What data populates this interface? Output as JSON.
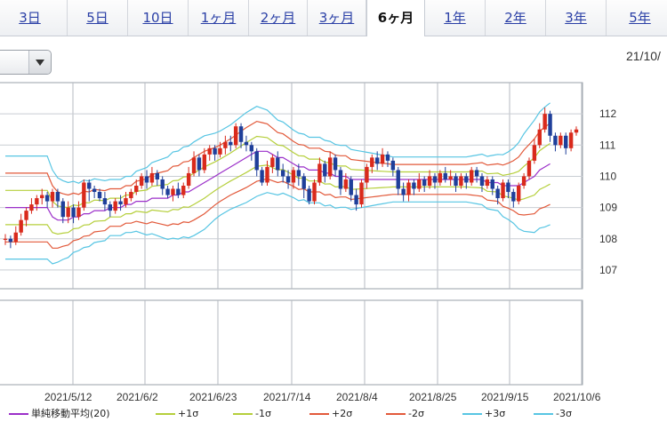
{
  "tabs": [
    {
      "label": "3日",
      "active": false
    },
    {
      "label": "5日",
      "active": false
    },
    {
      "label": "10日",
      "active": false
    },
    {
      "label": "1ヶ月",
      "active": false
    },
    {
      "label": "2ヶ月",
      "active": false
    },
    {
      "label": "3ヶ月",
      "active": false
    },
    {
      "label": "6ヶ月",
      "active": true
    },
    {
      "label": "1年",
      "active": false
    },
    {
      "label": "2年",
      "active": false
    },
    {
      "label": "3年",
      "active": false
    },
    {
      "label": "5年",
      "active": false
    }
  ],
  "header": {
    "date_label": "21/10/"
  },
  "chart_data": {
    "type": "candlestick",
    "x_tick_labels": [
      "2021/5/12",
      "2021/6/2",
      "2021/6/23",
      "2021/7/14",
      "2021/8/4",
      "2021/8/25",
      "2021/9/15",
      "2021/10/6"
    ],
    "y_tick_labels": [
      "112",
      "111",
      "110",
      "109",
      "108",
      "107"
    ],
    "ylim": [
      106.4,
      113.0
    ],
    "grid": true,
    "legend_position": "bottom",
    "colors": {
      "up": "#d92a1c",
      "down": "#1f3f9a",
      "sma": "#9b2fc9",
      "sigma1": "#b5cf3b",
      "sigma2": "#e2593a",
      "sigma3": "#57c5e3"
    },
    "legend": [
      {
        "key": "sma",
        "label": "単純移動平均(20)"
      },
      {
        "key": "p1",
        "label": "+1σ"
      },
      {
        "key": "m1",
        "label": "-1σ"
      },
      {
        "key": "p2",
        "label": "+2σ"
      },
      {
        "key": "m2",
        "label": "-2σ"
      },
      {
        "key": "p3",
        "label": "+3σ"
      },
      {
        "key": "m3",
        "label": "-3σ"
      }
    ],
    "candles": [
      [
        108.0,
        108.0,
        108.15,
        107.8
      ],
      [
        108.0,
        107.9,
        108.1,
        107.7
      ],
      [
        107.9,
        108.2,
        108.4,
        107.8
      ],
      [
        108.2,
        108.6,
        108.8,
        108.1
      ],
      [
        108.6,
        108.9,
        109.0,
        108.4
      ],
      [
        108.9,
        109.1,
        109.3,
        108.8
      ],
      [
        109.1,
        109.3,
        109.4,
        108.9
      ],
      [
        109.3,
        109.4,
        109.6,
        109.1
      ],
      [
        109.4,
        109.2,
        109.5,
        109.0
      ],
      [
        109.2,
        109.5,
        109.6,
        109.0
      ],
      [
        109.5,
        109.2,
        109.6,
        109.0
      ],
      [
        109.2,
        108.7,
        109.3,
        108.5
      ],
      [
        108.7,
        109.0,
        109.2,
        108.5
      ],
      [
        109.0,
        108.7,
        109.1,
        108.5
      ],
      [
        108.7,
        109.0,
        109.2,
        108.6
      ],
      [
        109.0,
        109.8,
        109.9,
        108.9
      ],
      [
        109.8,
        109.6,
        109.9,
        109.2
      ],
      [
        109.6,
        109.5,
        109.7,
        109.3
      ],
      [
        109.5,
        109.3,
        109.6,
        109.2
      ],
      [
        109.3,
        109.1,
        109.5,
        108.9
      ],
      [
        109.1,
        108.9,
        109.2,
        108.7
      ],
      [
        108.9,
        109.2,
        109.3,
        108.8
      ],
      [
        109.2,
        109.1,
        109.4,
        108.9
      ],
      [
        109.1,
        109.3,
        109.5,
        109.0
      ],
      [
        109.3,
        109.5,
        109.6,
        109.2
      ],
      [
        109.5,
        109.7,
        109.9,
        109.4
      ],
      [
        109.7,
        110.0,
        110.1,
        109.6
      ],
      [
        110.0,
        109.8,
        110.2,
        109.6
      ],
      [
        109.8,
        110.1,
        110.3,
        109.7
      ],
      [
        110.1,
        109.9,
        110.2,
        109.7
      ],
      [
        109.9,
        109.6,
        110.0,
        109.4
      ],
      [
        109.6,
        109.4,
        109.7,
        109.3
      ],
      [
        109.4,
        109.6,
        109.7,
        109.2
      ],
      [
        109.6,
        109.4,
        109.8,
        109.3
      ],
      [
        109.4,
        109.7,
        109.8,
        109.3
      ],
      [
        109.7,
        110.1,
        110.3,
        109.6
      ],
      [
        110.1,
        110.6,
        110.8,
        110.0
      ],
      [
        110.6,
        110.2,
        110.7,
        110.0
      ],
      [
        110.2,
        110.7,
        110.9,
        110.1
      ],
      [
        110.7,
        110.9,
        111.0,
        110.5
      ],
      [
        110.9,
        110.7,
        111.0,
        110.5
      ],
      [
        110.7,
        110.9,
        111.1,
        110.6
      ],
      [
        110.9,
        111.1,
        111.3,
        110.7
      ],
      [
        111.1,
        111.0,
        111.3,
        110.8
      ],
      [
        111.0,
        111.6,
        111.7,
        110.9
      ],
      [
        111.6,
        111.1,
        111.7,
        110.9
      ],
      [
        111.1,
        111.0,
        111.3,
        110.8
      ],
      [
        111.0,
        110.8,
        111.1,
        110.5
      ],
      [
        110.8,
        110.2,
        110.9,
        110.0
      ],
      [
        110.2,
        109.8,
        110.3,
        109.7
      ],
      [
        109.8,
        110.3,
        110.5,
        109.7
      ],
      [
        110.3,
        110.6,
        110.7,
        110.1
      ],
      [
        110.6,
        110.2,
        110.8,
        110.0
      ],
      [
        110.2,
        110.0,
        110.4,
        109.8
      ],
      [
        110.0,
        109.8,
        110.2,
        109.6
      ],
      [
        109.8,
        110.2,
        110.3,
        109.6
      ],
      [
        110.2,
        110.0,
        110.4,
        109.7
      ],
      [
        110.0,
        109.6,
        110.1,
        109.3
      ],
      [
        109.6,
        109.2,
        109.7,
        109.1
      ],
      [
        109.2,
        109.8,
        109.9,
        109.1
      ],
      [
        109.8,
        110.4,
        110.6,
        109.7
      ],
      [
        110.4,
        110.0,
        110.5,
        109.8
      ],
      [
        110.0,
        110.6,
        110.8,
        109.9
      ],
      [
        110.6,
        110.2,
        110.7,
        110.0
      ],
      [
        110.2,
        109.6,
        110.3,
        109.4
      ],
      [
        109.6,
        109.9,
        110.1,
        109.5
      ],
      [
        109.9,
        109.4,
        110.0,
        109.2
      ],
      [
        109.4,
        109.1,
        109.6,
        108.9
      ],
      [
        109.1,
        109.8,
        109.9,
        109.0
      ],
      [
        109.8,
        110.3,
        110.4,
        109.6
      ],
      [
        110.3,
        110.6,
        110.7,
        110.1
      ],
      [
        110.6,
        110.4,
        110.8,
        110.2
      ],
      [
        110.4,
        110.7,
        110.9,
        110.3
      ],
      [
        110.7,
        110.5,
        110.8,
        110.3
      ],
      [
        110.5,
        110.2,
        110.6,
        110.0
      ],
      [
        110.2,
        109.6,
        110.3,
        109.4
      ],
      [
        109.6,
        109.4,
        109.8,
        109.2
      ],
      [
        109.4,
        109.8,
        109.9,
        109.2
      ],
      [
        109.8,
        109.6,
        109.9,
        109.4
      ],
      [
        109.6,
        109.9,
        110.1,
        109.5
      ],
      [
        109.9,
        109.7,
        110.0,
        109.5
      ],
      [
        109.7,
        110.0,
        110.2,
        109.6
      ],
      [
        110.0,
        109.8,
        110.1,
        109.6
      ],
      [
        109.8,
        110.1,
        110.2,
        109.7
      ],
      [
        110.1,
        109.9,
        110.3,
        109.8
      ],
      [
        109.9,
        110.0,
        110.2,
        109.7
      ],
      [
        110.0,
        109.7,
        110.1,
        109.5
      ],
      [
        109.7,
        110.0,
        110.1,
        109.6
      ],
      [
        110.0,
        109.8,
        110.1,
        109.6
      ],
      [
        109.8,
        110.2,
        110.3,
        109.7
      ],
      [
        110.2,
        110.0,
        110.3,
        109.8
      ],
      [
        110.0,
        109.7,
        110.1,
        109.5
      ],
      [
        109.7,
        109.9,
        110.0,
        109.6
      ],
      [
        109.9,
        109.6,
        110.0,
        109.4
      ],
      [
        109.6,
        109.3,
        109.7,
        109.1
      ],
      [
        109.3,
        109.8,
        109.9,
        109.2
      ],
      [
        109.8,
        109.5,
        109.9,
        109.3
      ],
      [
        109.5,
        109.2,
        109.6,
        109.0
      ],
      [
        109.2,
        109.7,
        109.8,
        109.1
      ],
      [
        109.7,
        110.0,
        110.1,
        109.6
      ],
      [
        110.0,
        110.5,
        110.6,
        109.9
      ],
      [
        110.5,
        111.0,
        111.2,
        110.4
      ],
      [
        111.0,
        111.5,
        111.7,
        110.9
      ],
      [
        111.5,
        112.0,
        112.2,
        111.4
      ],
      [
        112.0,
        111.3,
        112.1,
        111.1
      ],
      [
        111.3,
        111.0,
        111.4,
        110.8
      ],
      [
        111.0,
        111.3,
        111.4,
        110.9
      ],
      [
        111.3,
        110.9,
        111.4,
        110.7
      ],
      [
        110.9,
        111.4,
        111.5,
        110.8
      ],
      [
        111.4,
        111.5,
        111.6,
        111.3
      ]
    ],
    "sma": [
      109.0,
      109.0,
      109.0,
      109.0,
      109.0,
      109.0,
      109.0,
      109.0,
      109.0,
      108.7,
      108.6,
      108.6,
      108.6,
      108.7,
      108.7,
      108.8,
      108.8,
      108.9,
      108.9,
      108.9,
      109.0,
      109.0,
      109.0,
      109.1,
      109.1,
      109.2,
      109.2,
      109.2,
      109.3,
      109.3,
      109.3,
      109.3,
      109.4,
      109.4,
      109.5,
      109.5,
      109.6,
      109.7,
      109.8,
      109.9,
      110.0,
      110.1,
      110.2,
      110.3,
      110.4,
      110.5,
      110.6,
      110.7,
      110.8,
      110.8,
      110.8,
      110.7,
      110.6,
      110.6,
      110.5,
      110.4,
      110.3,
      110.3,
      110.2,
      110.2,
      110.2,
      110.1,
      110.1,
      110.0,
      110.0,
      110.0,
      109.9,
      109.9,
      109.9,
      109.9,
      109.9,
      109.9,
      109.9,
      109.9,
      109.9,
      109.9,
      109.9,
      109.9,
      109.9,
      109.9,
      109.9,
      109.9,
      109.9,
      109.9,
      109.9,
      109.9,
      109.9,
      109.9,
      109.9,
      109.9,
      109.9,
      109.9,
      109.8,
      109.8,
      109.8,
      109.7,
      109.7,
      109.7,
      109.7,
      109.8,
      109.9,
      110.0,
      110.2,
      110.3,
      110.4
    ],
    "sd": [
      0.55,
      0.55,
      0.55,
      0.55,
      0.55,
      0.55,
      0.55,
      0.55,
      0.55,
      0.5,
      0.45,
      0.42,
      0.4,
      0.38,
      0.36,
      0.36,
      0.35,
      0.34,
      0.33,
      0.32,
      0.3,
      0.3,
      0.3,
      0.3,
      0.3,
      0.32,
      0.34,
      0.36,
      0.38,
      0.4,
      0.42,
      0.44,
      0.46,
      0.47,
      0.48,
      0.49,
      0.5,
      0.5,
      0.5,
      0.48,
      0.46,
      0.45,
      0.45,
      0.45,
      0.46,
      0.47,
      0.48,
      0.48,
      0.48,
      0.46,
      0.44,
      0.42,
      0.4,
      0.38,
      0.37,
      0.36,
      0.36,
      0.35,
      0.35,
      0.35,
      0.35,
      0.35,
      0.34,
      0.34,
      0.33,
      0.33,
      0.32,
      0.31,
      0.3,
      0.29,
      0.28,
      0.27,
      0.26,
      0.25,
      0.24,
      0.24,
      0.24,
      0.24,
      0.24,
      0.24,
      0.24,
      0.24,
      0.24,
      0.24,
      0.24,
      0.24,
      0.24,
      0.24,
      0.24,
      0.25,
      0.26,
      0.27,
      0.28,
      0.29,
      0.3,
      0.33,
      0.36,
      0.4,
      0.46,
      0.52,
      0.56,
      0.6,
      0.62,
      0.64,
      0.65
    ]
  }
}
